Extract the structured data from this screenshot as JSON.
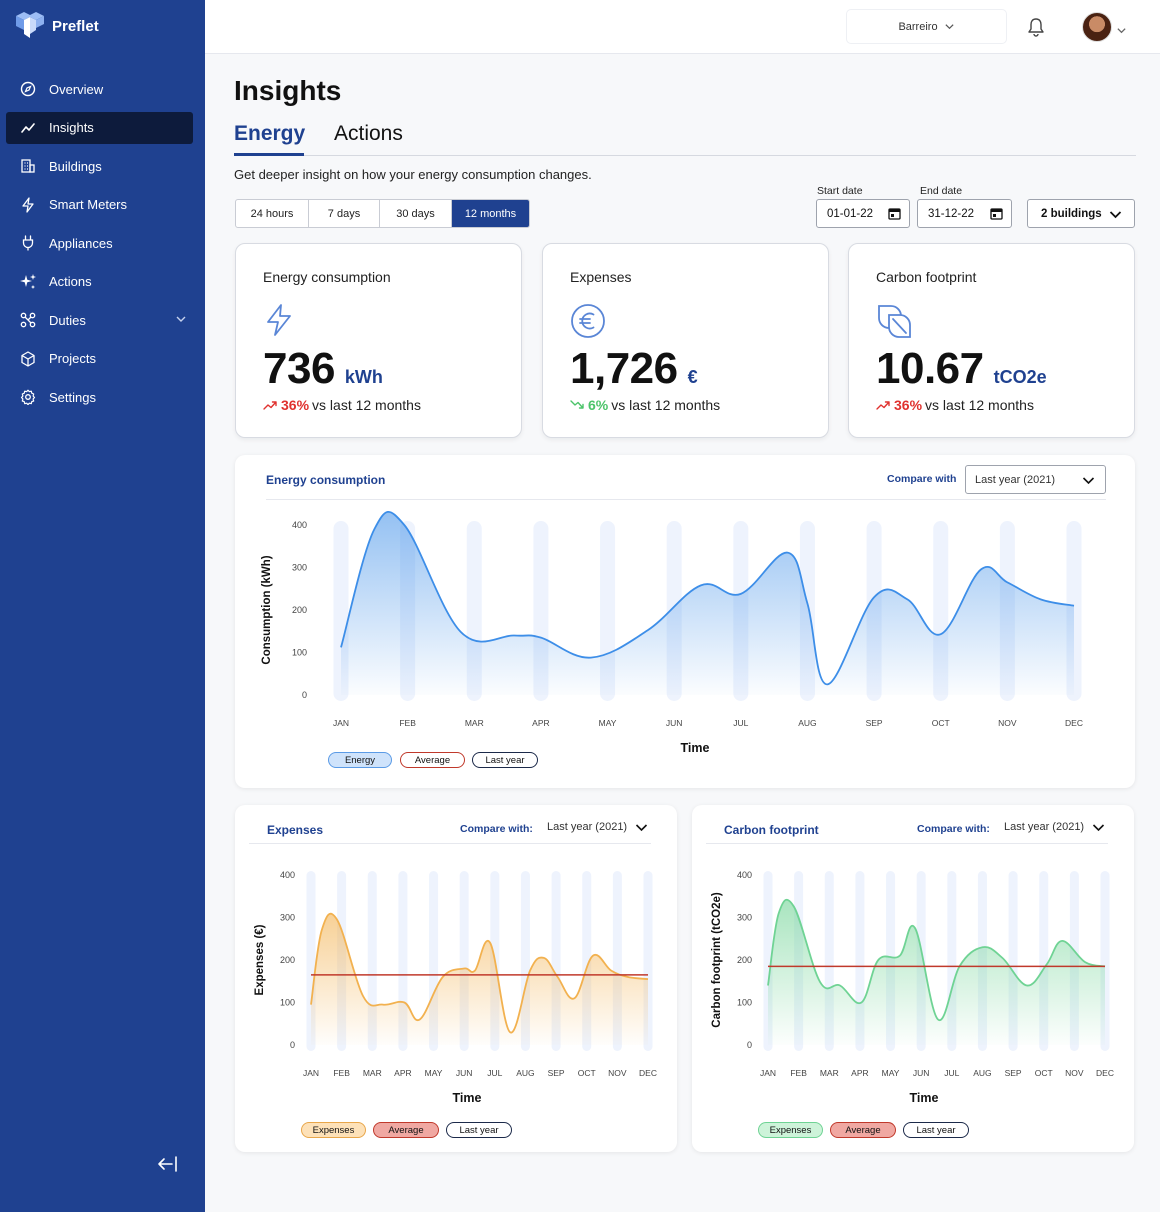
{
  "app": {
    "name": "Preflet"
  },
  "sidebar": {
    "items": [
      {
        "label": "Overview"
      },
      {
        "label": "Insights"
      },
      {
        "label": "Buildings"
      },
      {
        "label": "Smart Meters"
      },
      {
        "label": "Appliances"
      },
      {
        "label": "Actions"
      },
      {
        "label": "Duties"
      },
      {
        "label": "Projects"
      },
      {
        "label": "Settings"
      }
    ]
  },
  "topbar": {
    "location": "Barreiro"
  },
  "page": {
    "title": "Insights",
    "tabs": [
      {
        "label": "Energy"
      },
      {
        "label": "Actions"
      }
    ],
    "subtitle": "Get deeper insight on how your energy consumption changes."
  },
  "filters": {
    "periods": [
      {
        "label": "24 hours"
      },
      {
        "label": "7 days"
      },
      {
        "label": "30 days"
      },
      {
        "label": "12 months"
      }
    ],
    "active_period": "12 months",
    "start_label": "Start date",
    "start_value": "01-01-22",
    "end_label": "End date",
    "end_value": "31-12-22",
    "buildings": "2 buildings"
  },
  "kpis": [
    {
      "title": "Energy consumption",
      "value": "736",
      "unit": "kWh",
      "pct": "36%",
      "trend_text": "vs last 12 months",
      "direction": "up"
    },
    {
      "title": "Expenses",
      "value": "1,726",
      "unit": "€",
      "pct": "6%",
      "trend_text": "vs last 12 months",
      "direction": "down"
    },
    {
      "title": "Carbon footprint",
      "value": "10.67",
      "unit": "tCO2e",
      "pct": "36%",
      "trend_text": "vs last 12 months",
      "direction": "up"
    }
  ],
  "colors": {
    "brand": "#1f4190",
    "energy": "#3d8ee8",
    "expenses": "#f2b14f",
    "carbon": "#6fd394",
    "average": "#c0392b"
  },
  "charts": {
    "energy": {
      "title": "Energy consumption",
      "compare_label": "Compare with",
      "compare_value": "Last year (2021)",
      "legend": [
        "Energy",
        "Average",
        "Last year"
      ]
    },
    "expenses": {
      "title": "Expenses",
      "compare_label": "Compare with:",
      "compare_value": "Last year (2021)",
      "legend": [
        "Expenses",
        "Average",
        "Last year"
      ]
    },
    "carbon": {
      "title": "Carbon footprint",
      "compare_label": "Compare with:",
      "compare_value": "Last year (2021)",
      "legend": [
        "Expenses",
        "Average",
        "Last year"
      ]
    }
  },
  "chart_data": [
    {
      "type": "area",
      "title": "Energy consumption",
      "categories": [
        "JAN",
        "FEB",
        "MAR",
        "APR",
        "MAY",
        "JUN",
        "JUL",
        "AUG",
        "SEP",
        "OCT",
        "NOV",
        "DEC"
      ],
      "x": [
        0,
        0.5,
        0.95,
        1.8,
        2.6,
        3.0,
        3.75,
        4.6,
        5.4,
        6.0,
        6.7,
        7.0,
        7.3,
        8.0,
        8.5,
        9.0,
        9.6,
        10.0,
        10.5,
        11.0
      ],
      "values": [
        112,
        390,
        400,
        148,
        140,
        135,
        88,
        152,
        258,
        238,
        335,
        215,
        25,
        230,
        225,
        143,
        295,
        265,
        225,
        210
      ],
      "xlabel": "Time",
      "ylabel": "Consumption (kWh)",
      "ylim": [
        0,
        400
      ],
      "yticks": [
        0,
        100,
        200,
        300,
        400
      ]
    },
    {
      "type": "area",
      "title": "Expenses",
      "categories": [
        "JAN",
        "FEB",
        "MAR",
        "APR",
        "MAY",
        "JUN",
        "JUL",
        "AUG",
        "SEP",
        "OCT",
        "NOV",
        "DEC"
      ],
      "x": [
        0,
        0.35,
        0.85,
        1.7,
        2.35,
        3.05,
        3.55,
        4.3,
        5.0,
        5.35,
        5.85,
        6.5,
        7.15,
        7.6,
        8.05,
        8.6,
        9.2,
        9.8,
        10.35,
        11.0
      ],
      "values": [
        95,
        270,
        295,
        115,
        95,
        100,
        60,
        160,
        180,
        175,
        240,
        30,
        175,
        205,
        160,
        110,
        210,
        175,
        160,
        155
      ],
      "average": 165,
      "xlabel": "Time",
      "ylabel": "Expenses (€)",
      "ylim": [
        0,
        400
      ],
      "yticks": [
        0,
        100,
        200,
        300,
        400
      ]
    },
    {
      "type": "area",
      "title": "Carbon footprint",
      "categories": [
        "JAN",
        "FEB",
        "MAR",
        "APR",
        "MAY",
        "JUN",
        "JUL",
        "AUG",
        "SEP",
        "OCT",
        "NOV",
        "DEC"
      ],
      "x": [
        0,
        0.35,
        0.85,
        1.7,
        2.35,
        3.05,
        3.6,
        4.3,
        4.8,
        5.55,
        6.25,
        7.0,
        7.65,
        8.45,
        9.1,
        9.6,
        10.35,
        11.0
      ],
      "values": [
        140,
        310,
        325,
        148,
        140,
        100,
        200,
        210,
        275,
        60,
        185,
        230,
        205,
        140,
        190,
        245,
        195,
        185
      ],
      "average": 185,
      "xlabel": "Time",
      "ylabel": "Carbon footprint (tCO2e)",
      "ylim": [
        0,
        400
      ],
      "yticks": [
        0,
        100,
        200,
        300,
        400
      ]
    }
  ]
}
